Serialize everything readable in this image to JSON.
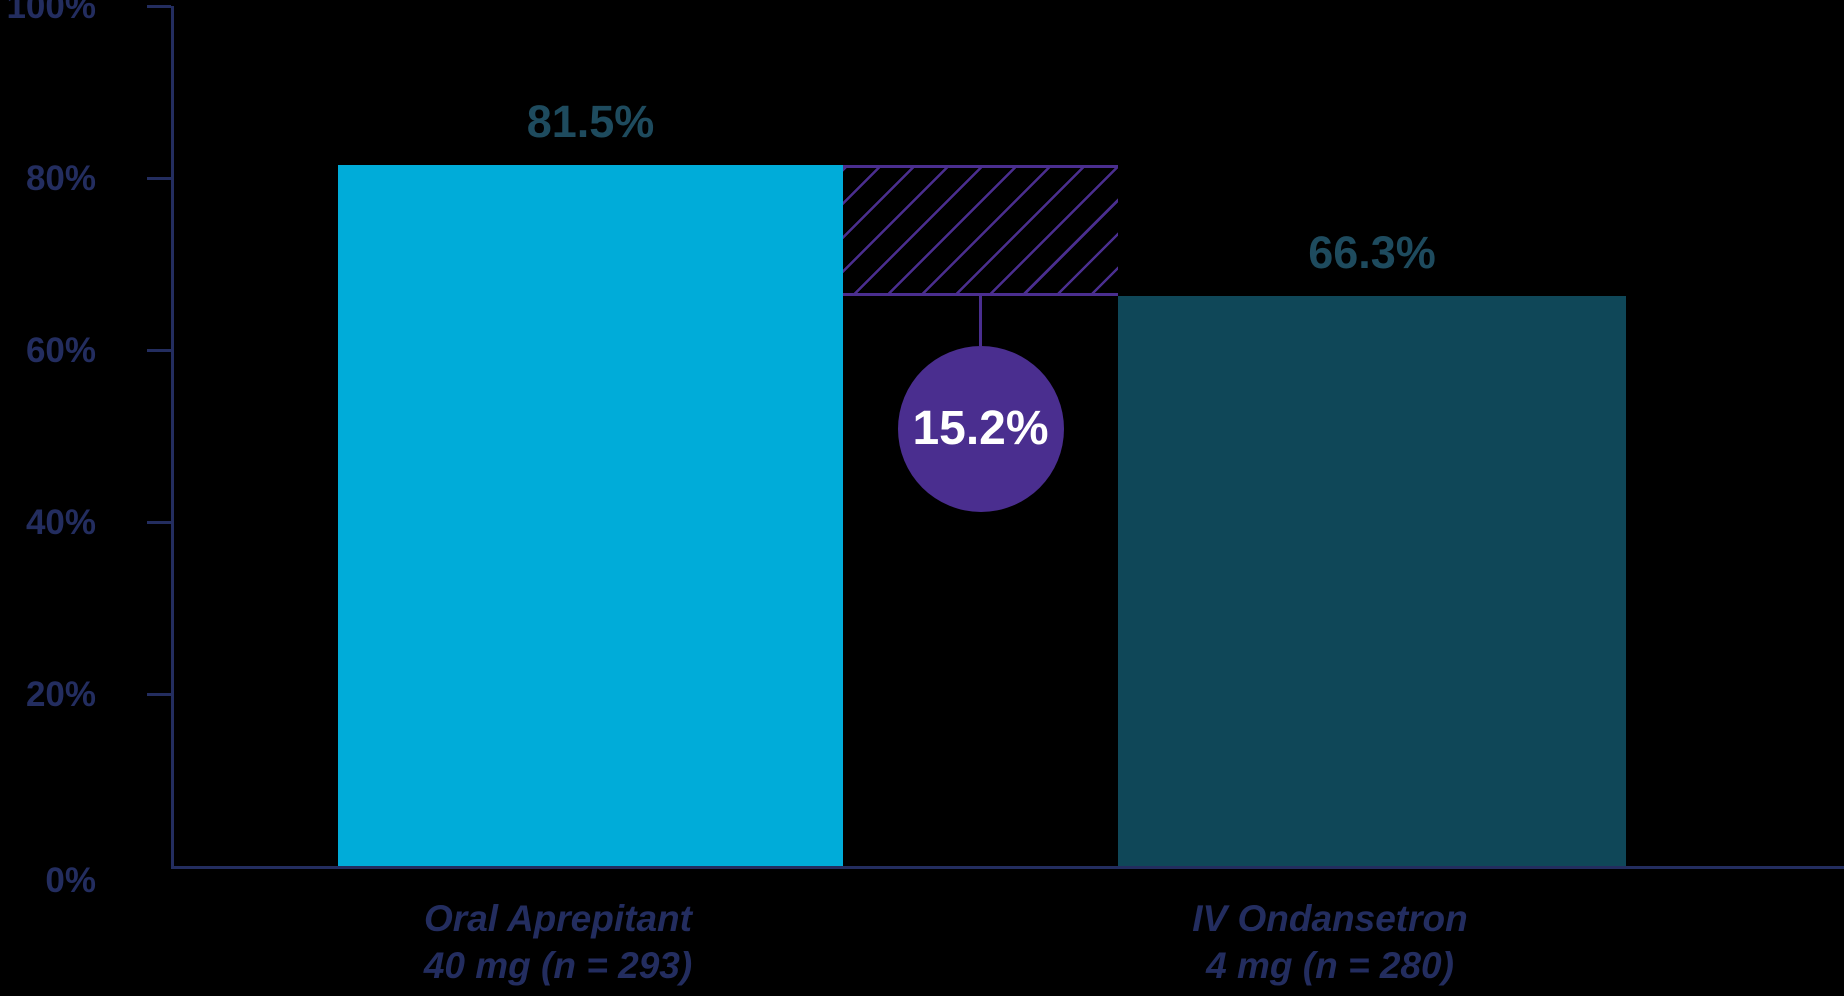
{
  "chart_data": {
    "type": "bar",
    "title": "",
    "xlabel": "",
    "ylabel": "",
    "ylim": [
      0,
      100
    ],
    "grid": false,
    "legend": false,
    "yticks": [
      {
        "value": 0,
        "label": "0%"
      },
      {
        "value": 20,
        "label": "20%"
      },
      {
        "value": 40,
        "label": "40%"
      },
      {
        "value": 60,
        "label": "60%"
      },
      {
        "value": 80,
        "label": "80%"
      },
      {
        "value": 100,
        "label": "100%"
      }
    ],
    "bars": [
      {
        "category_line1": "Oral Aprepitant",
        "category_line2": "40 mg (n = 293)",
        "value": 81.5,
        "value_label": "81.5%",
        "color": "#00ACD9"
      },
      {
        "category_line1": "IV Ondansetron",
        "category_line2": "4 mg (n = 280)",
        "value": 66.3,
        "value_label": "66.3%",
        "color": "#0F4758"
      }
    ],
    "difference": {
      "value": 15.2,
      "label": "15.2%",
      "style": "hatched-band-with-callout-circle"
    },
    "colors": {
      "background": "#000000",
      "axis": "#232D5F",
      "tick_label": "#232D5F",
      "value_label": "#1E4B5E",
      "category_label": "#232D5F",
      "difference": "#4A2E8F",
      "difference_text": "#FFFFFF"
    }
  }
}
